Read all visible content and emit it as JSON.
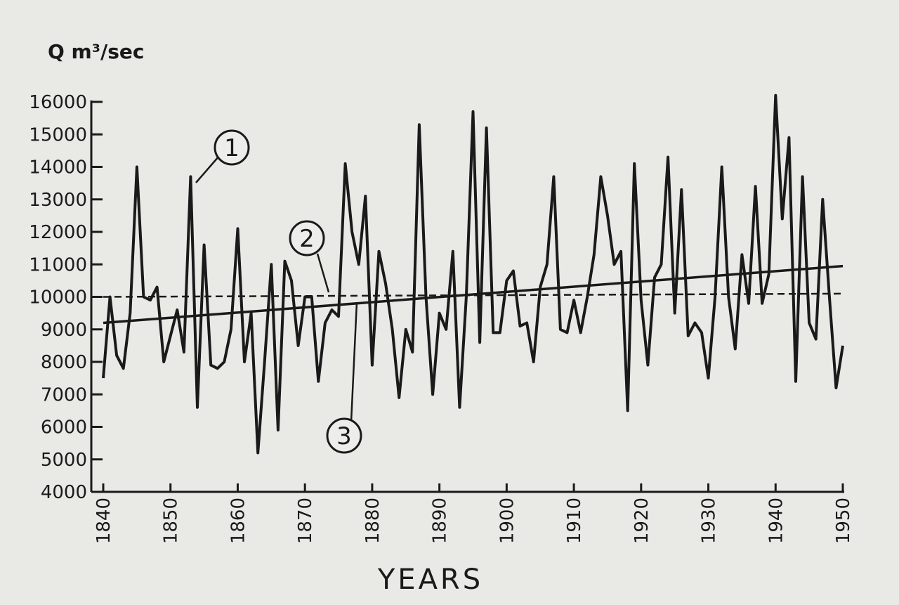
{
  "chart_data": {
    "type": "line",
    "ylabel": "Q m³/sec",
    "xlabel": "YEARS",
    "xlim": [
      1840,
      1950
    ],
    "ylim": [
      4000,
      16000
    ],
    "x_ticks": [
      "1840",
      "1850",
      "1860",
      "1870",
      "1880",
      "1890",
      "1900",
      "1910",
      "1920",
      "1930",
      "1940",
      "1950"
    ],
    "y_ticks": [
      "4000",
      "5000",
      "6000",
      "7000",
      "8000",
      "9000",
      "10000",
      "11000",
      "12000",
      "13000",
      "14000",
      "15000",
      "16000"
    ],
    "series": [
      {
        "name": "1",
        "style": "solid",
        "x": [
          1840,
          1841,
          1842,
          1843,
          1844,
          1845,
          1846,
          1847,
          1848,
          1849,
          1850,
          1851,
          1852,
          1853,
          1854,
          1855,
          1856,
          1857,
          1858,
          1859,
          1860,
          1861,
          1862,
          1863,
          1864,
          1865,
          1866,
          1867,
          1868,
          1869,
          1870,
          1871,
          1872,
          1873,
          1874,
          1875,
          1876,
          1877,
          1878,
          1879,
          1880,
          1881,
          1882,
          1883,
          1884,
          1885,
          1886,
          1887,
          1888,
          1889,
          1890,
          1891,
          1892,
          1893,
          1894,
          1895,
          1896,
          1897,
          1898,
          1899,
          1900,
          1901,
          1902,
          1903,
          1904,
          1905,
          1906,
          1907,
          1908,
          1909,
          1910,
          1911,
          1912,
          1913,
          1914,
          1915,
          1916,
          1917,
          1918,
          1919,
          1920,
          1921,
          1922,
          1923,
          1924,
          1925,
          1926,
          1927,
          1928,
          1929,
          1930,
          1931,
          1932,
          1933,
          1934,
          1935,
          1936,
          1937,
          1938,
          1939,
          1940,
          1941,
          1942,
          1943,
          1944,
          1945,
          1946,
          1947,
          1948,
          1949,
          1950
        ],
        "values": [
          7500,
          10000,
          8200,
          7800,
          9500,
          14000,
          10000,
          9900,
          10300,
          8000,
          8800,
          9600,
          8300,
          13700,
          6600,
          11600,
          7900,
          7800,
          8000,
          9000,
          12100,
          8000,
          9500,
          5200,
          8000,
          11000,
          5900,
          11100,
          10500,
          8500,
          10000,
          10000,
          7400,
          9200,
          9600,
          9400,
          14100,
          12000,
          11000,
          13100,
          7900,
          11400,
          10400,
          9000,
          6900,
          9000,
          8300,
          15300,
          10000,
          7000,
          9500,
          9000,
          11400,
          6600,
          10000,
          15700,
          8600,
          15200,
          8900,
          8900,
          10500,
          10800,
          9100,
          9200,
          8000,
          10300,
          11000,
          13700,
          9000,
          8900,
          9900,
          8900,
          10000,
          11300,
          13700,
          12500,
          11000,
          11400,
          6500,
          14100,
          9900,
          7900,
          10600,
          11000,
          14300,
          9500,
          13300,
          8800,
          9200,
          8900,
          7500,
          10000,
          14000,
          10000,
          8400,
          11300,
          9800,
          13400,
          9800,
          10700,
          16200,
          12400,
          14900,
          7400,
          13700,
          9200,
          8700,
          13000,
          10000,
          7200,
          8500
        ]
      },
      {
        "name": "2",
        "style": "dashed",
        "x": [
          1840,
          1950
        ],
        "values": [
          10000,
          10100
        ]
      },
      {
        "name": "3",
        "style": "solid",
        "x": [
          1840,
          1950
        ],
        "values": [
          9200,
          10950
        ]
      }
    ],
    "annotations": [
      {
        "text": "1",
        "series": "1"
      },
      {
        "text": "2",
        "series": "2"
      },
      {
        "text": "3",
        "series": "3"
      }
    ],
    "grid": false,
    "legend": "none"
  }
}
